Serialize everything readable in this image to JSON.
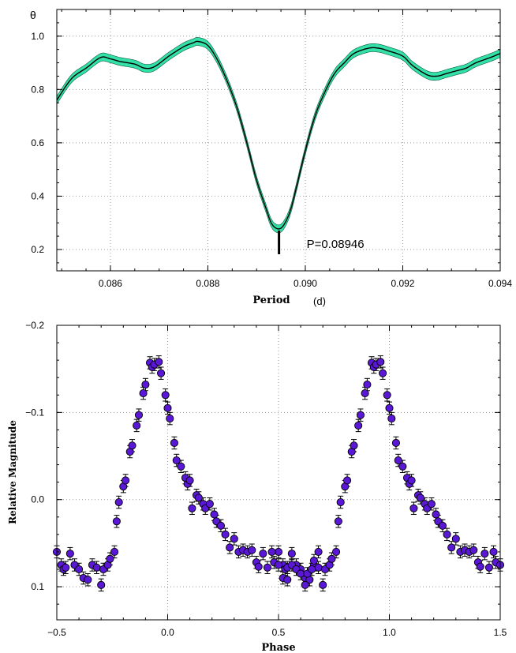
{
  "chart_data": [
    {
      "type": "line",
      "ylabel": "θ",
      "xlabel": "Period",
      "xlabel_unit": "(d)",
      "xlim": [
        0.0849,
        0.094
      ],
      "ylim": [
        0.12,
        1.1
      ],
      "xticks": [
        0.086,
        0.088,
        0.09,
        0.092,
        0.094
      ],
      "xtick_labels": [
        "0.086",
        "0.088",
        "0.090",
        "0.092",
        "0.094"
      ],
      "yticks": [
        0.2,
        0.4,
        0.6,
        0.8,
        1.0
      ],
      "ytick_labels": [
        "0.2",
        "0.4",
        "0.6",
        "0.8",
        "1.0"
      ],
      "grid": true,
      "band_color": "#33e0a8",
      "line_color": "#000000",
      "band_halfwidth": 0.015,
      "series": [
        {
          "x": [
            0.0849,
            0.0852,
            0.0855,
            0.0858,
            0.086,
            0.0862,
            0.0865,
            0.0867,
            0.0869,
            0.0872,
            0.0875,
            0.0877,
            0.0878,
            0.088,
            0.0882,
            0.0884,
            0.0886,
            0.0888,
            0.089,
            0.0892,
            0.0893,
            0.0894,
            0.0895,
            0.0896,
            0.0897,
            0.0898,
            0.09,
            0.0902,
            0.0904,
            0.0906,
            0.0908,
            0.091,
            0.0913,
            0.0915,
            0.0917,
            0.092,
            0.0922,
            0.0925,
            0.0927,
            0.0929,
            0.0931,
            0.0933,
            0.0935,
            0.0938,
            0.094
          ],
          "y": [
            0.76,
            0.84,
            0.88,
            0.92,
            0.915,
            0.905,
            0.895,
            0.88,
            0.885,
            0.925,
            0.96,
            0.975,
            0.98,
            0.965,
            0.91,
            0.83,
            0.73,
            0.6,
            0.46,
            0.35,
            0.3,
            0.28,
            0.28,
            0.305,
            0.35,
            0.42,
            0.57,
            0.7,
            0.79,
            0.86,
            0.9,
            0.935,
            0.955,
            0.955,
            0.945,
            0.925,
            0.89,
            0.855,
            0.85,
            0.86,
            0.87,
            0.88,
            0.9,
            0.92,
            0.935
          ]
        }
      ],
      "annotations": [
        {
          "text": "P=0.08946",
          "x": 0.08946
        }
      ]
    },
    {
      "type": "scatter",
      "xlabel": "Phase",
      "ylabel": "Relative Magnitude",
      "xlim": [
        -0.5,
        1.5
      ],
      "ylim": [
        0.138,
        -0.2
      ],
      "y_inverted": true,
      "xticks": [
        -0.5,
        0.0,
        0.5,
        1.0,
        1.5
      ],
      "xtick_labels": [
        "−0.5",
        "0.0",
        "0.5",
        "1.0",
        "1.5"
      ],
      "yticks": [
        -0.2,
        -0.1,
        0.0,
        0.1
      ],
      "ytick_labels": [
        "−0.2",
        "−0.1",
        "0.0",
        "0.1"
      ],
      "grid": true,
      "marker_color": "#5a18d6",
      "marker_edge": "#000000",
      "error": 0.007,
      "points": [
        [
          -0.5,
          0.06
        ],
        [
          -0.48,
          0.075
        ],
        [
          -0.47,
          0.08
        ],
        [
          -0.46,
          0.078
        ],
        [
          -0.44,
          0.062
        ],
        [
          -0.42,
          0.075
        ],
        [
          -0.4,
          0.08
        ],
        [
          -0.38,
          0.09
        ],
        [
          -0.36,
          0.092
        ],
        [
          -0.34,
          0.075
        ],
        [
          -0.32,
          0.078
        ],
        [
          -0.3,
          0.098
        ],
        [
          -0.29,
          0.08
        ],
        [
          -0.27,
          0.075
        ],
        [
          -0.26,
          0.068
        ],
        [
          -0.24,
          0.06
        ],
        [
          -0.23,
          0.025
        ],
        [
          -0.22,
          0.003
        ],
        [
          -0.2,
          -0.015
        ],
        [
          -0.19,
          -0.022
        ],
        [
          -0.17,
          -0.055
        ],
        [
          -0.16,
          -0.062
        ],
        [
          -0.14,
          -0.085
        ],
        [
          -0.13,
          -0.097
        ],
        [
          -0.11,
          -0.122
        ],
        [
          -0.1,
          -0.132
        ],
        [
          -0.08,
          -0.157
        ],
        [
          -0.07,
          -0.152
        ],
        [
          -0.06,
          -0.155
        ],
        [
          -0.04,
          -0.158
        ],
        [
          -0.03,
          -0.145
        ],
        [
          -0.01,
          -0.12
        ],
        [
          0.0,
          -0.105
        ],
        [
          0.01,
          -0.093
        ],
        [
          0.03,
          -0.065
        ],
        [
          0.04,
          -0.045
        ],
        [
          0.06,
          -0.038
        ],
        [
          0.08,
          -0.025
        ],
        [
          0.09,
          -0.018
        ],
        [
          0.1,
          -0.022
        ],
        [
          0.11,
          0.01
        ],
        [
          0.13,
          -0.005
        ],
        [
          0.14,
          -0.002
        ],
        [
          0.16,
          0.005
        ],
        [
          0.17,
          0.01
        ],
        [
          0.19,
          0.005
        ],
        [
          0.21,
          0.017
        ],
        [
          0.22,
          0.025
        ],
        [
          0.24,
          0.03
        ],
        [
          0.26,
          0.04
        ],
        [
          0.28,
          0.055
        ],
        [
          0.3,
          0.045
        ],
        [
          0.32,
          0.06
        ],
        [
          0.34,
          0.058
        ],
        [
          0.36,
          0.06
        ],
        [
          0.38,
          0.058
        ],
        [
          0.4,
          0.072
        ],
        [
          0.41,
          0.077
        ],
        [
          0.43,
          0.062
        ],
        [
          0.45,
          0.078
        ],
        [
          0.47,
          0.06
        ],
        [
          0.48,
          0.072
        ],
        [
          0.5,
          0.075
        ],
        [
          0.52,
          0.09
        ],
        [
          0.54,
          0.092
        ],
        [
          0.56,
          0.075
        ],
        [
          0.58,
          0.08
        ],
        [
          0.6,
          0.085
        ],
        [
          0.62,
          0.098
        ],
        [
          0.63,
          0.085
        ],
        [
          0.65,
          0.08
        ],
        [
          0.66,
          0.07
        ],
        [
          0.68,
          0.06
        ]
      ]
    }
  ]
}
